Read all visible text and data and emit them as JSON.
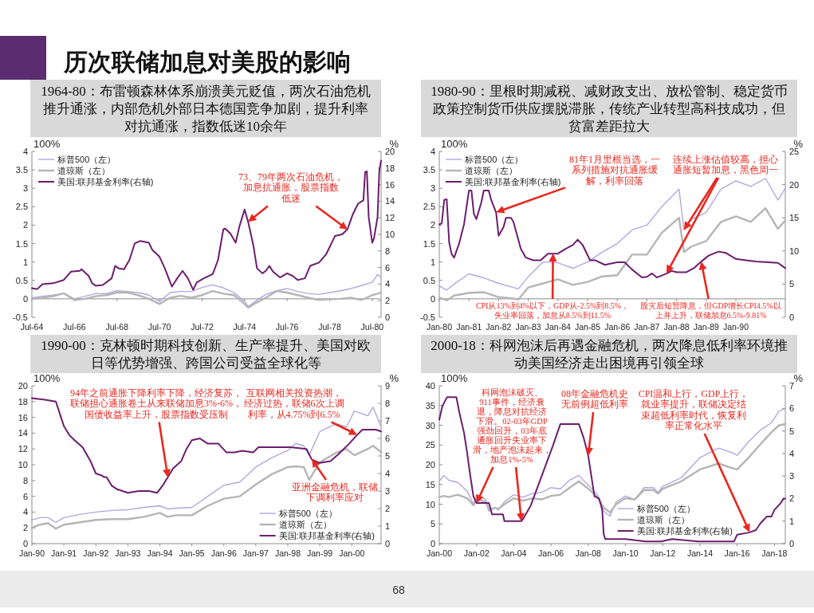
{
  "chart_data": [
    {
      "type": "other",
      "title": "历次联储加息对美股的影响",
      "annotations": [
        "68"
      ]
    },
    {
      "type": "line",
      "title": "1964-80：布雷顿森林体系崩溃美元贬值，两次石油危机推升通涨，内部危机外部日本德国竞争加剧，提升利率对抗通涨，指数低迷10余年",
      "ylabel": "100%",
      "y2label": "%",
      "legend": "top left",
      "line_style": "solid",
      "xlim": [
        "1964-07",
        "1980-12"
      ],
      "xticks": [
        {
          "value": "1964-07",
          "label": "Jul-64"
        },
        {
          "value": "1966-07",
          "label": "Jul-66"
        },
        {
          "value": "1968-07",
          "label": "Jul-68"
        },
        {
          "value": "1970-07",
          "label": "Jul-70"
        },
        {
          "value": "1972-07",
          "label": "Jul-72"
        },
        {
          "value": "1974-07",
          "label": "Jul-74"
        },
        {
          "value": "1976-07",
          "label": "Jul-76"
        },
        {
          "value": "1978-07",
          "label": "Jul-78"
        },
        {
          "value": "1980-07",
          "label": "Jul-80"
        }
      ],
      "ylim": [
        -0.5,
        4
      ],
      "yticks": [
        -0.5,
        0,
        0.5,
        1,
        1.5,
        2,
        2.5,
        3,
        3.5,
        4
      ],
      "y2lim": [
        0,
        20
      ],
      "y2ticks": [
        0,
        2,
        4,
        6,
        8,
        10,
        12,
        14,
        16,
        18,
        20
      ],
      "x": [
        "1964-07",
        "1965-01",
        "1965-07",
        "1966-01",
        "1966-07",
        "1967-01",
        "1967-07",
        "1968-01",
        "1968-07",
        "1969-01",
        "1969-07",
        "1970-01",
        "1970-07",
        "1971-01",
        "1971-07",
        "1972-01",
        "1972-07",
        "1973-01",
        "1973-07",
        "1974-01",
        "1974-07",
        "1974-09",
        "1975-01",
        "1975-07",
        "1976-01",
        "1976-07",
        "1977-01",
        "1977-07",
        "1978-01",
        "1978-07",
        "1979-01",
        "1979-07",
        "1980-01",
        "1980-07",
        "1980-10",
        "1980-12"
      ],
      "series": [
        {
          "name": "标普500（左）",
          "color": "#b4a5e3",
          "values": [
            0.03,
            0.07,
            0.1,
            0.15,
            0.0,
            0.07,
            0.14,
            0.14,
            0.22,
            0.2,
            0.17,
            0.1,
            -0.07,
            0.17,
            0.2,
            0.2,
            0.31,
            0.38,
            0.3,
            0.17,
            -0.07,
            -0.21,
            -0.07,
            0.12,
            0.22,
            0.28,
            0.2,
            0.14,
            0.12,
            0.17,
            0.22,
            0.28,
            0.36,
            0.45,
            0.66,
            0.59
          ]
        },
        {
          "name": "道琼斯（左）",
          "color": "#b5b5b5",
          "values": [
            0.0,
            0.03,
            0.07,
            0.15,
            -0.03,
            0.0,
            0.07,
            0.1,
            0.17,
            0.17,
            0.1,
            0.0,
            -0.14,
            0.03,
            0.08,
            0.03,
            0.1,
            0.21,
            0.14,
            0.1,
            -0.14,
            -0.24,
            -0.12,
            0.03,
            0.21,
            0.17,
            0.1,
            0.03,
            -0.03,
            -0.01,
            0.0,
            0.03,
            -0.03,
            0.1,
            0.14,
            0.17
          ]
        },
        {
          "name": "美国:联邦基金利率(右轴)",
          "color": "#6c1d6e",
          "axis": "y2",
          "x": [
            "1964-07",
            "1964-10",
            "1965-01",
            "1965-07",
            "1966-01",
            "1966-05",
            "1966-10",
            "1966-11",
            "1967-03",
            "1967-05",
            "1967-07",
            "1967-11",
            "1968-04",
            "1968-06",
            "1968-08",
            "1968-11",
            "1969-02",
            "1969-05",
            "1969-08",
            "1970-01",
            "1970-03",
            "1970-07",
            "1970-10",
            "1971-02",
            "1971-05",
            "1971-08",
            "1971-11",
            "1972-02",
            "1972-04",
            "1972-08",
            "1973-01",
            "1973-04",
            "1973-07",
            "1973-08",
            "1973-11",
            "1974-02",
            "1974-04",
            "1974-07",
            "1974-09",
            "1974-12",
            "1975-02",
            "1975-05",
            "1975-07",
            "1975-09",
            "1975-11",
            "1976-03",
            "1976-07",
            "1976-10",
            "1977-01",
            "1977-05",
            "1977-08",
            "1978-01",
            "1978-05",
            "1978-10",
            "1979-02",
            "1979-05",
            "1979-08",
            "1979-11",
            "1980-02",
            "1980-03",
            "1980-04",
            "1980-05",
            "1980-07",
            "1980-08",
            "1980-10",
            "1980-11",
            "1980-12"
          ],
          "values": [
            3.5,
            3.4,
            4.0,
            4.1,
            4.5,
            5.5,
            5.6,
            5.8,
            5.0,
            4.1,
            3.8,
            3.9,
            4.7,
            6.2,
            5.9,
            5.8,
            6.9,
            8.9,
            9.2,
            9.0,
            8.1,
            7.3,
            5.9,
            3.7,
            4.7,
            5.6,
            4.7,
            3.3,
            4.2,
            4.7,
            5.2,
            6.9,
            10.6,
            10.7,
            10.1,
            9.0,
            10.9,
            13.0,
            11.5,
            8.6,
            5.9,
            5.3,
            5.6,
            6.2,
            5.5,
            4.8,
            5.3,
            5.0,
            4.5,
            4.7,
            6.2,
            6.6,
            7.6,
            9.8,
            10.0,
            10.6,
            12.4,
            13.7,
            14.1,
            17.5,
            17.6,
            12.1,
            9.0,
            9.5,
            12.1,
            17.7,
            18.9
          ]
        }
      ],
      "annotations": [
        {
          "text": "73、79年两次石油危机，加息抗通胀，股票指数低迷",
          "x": "1974-09",
          "y": 2.09
        }
      ]
    },
    {
      "type": "line",
      "title": "1980-90：里根时期减税、减财政支出、放松管制、稳定货币政策控制货币供应摆脱滞胀，传统产业转型高科技成功，但贫富差距拉大",
      "ylabel": "100%",
      "y2label": "%",
      "legend": "top left",
      "line_style": "solid",
      "xlim": [
        "1980-01",
        "1991-09"
      ],
      "xticks": [
        {
          "value": "1980-01",
          "label": "Jan-80"
        },
        {
          "value": "1981-01",
          "label": "Jan-81"
        },
        {
          "value": "1982-01",
          "label": "Jan-82"
        },
        {
          "value": "1983-01",
          "label": "Jan-83"
        },
        {
          "value": "1984-01",
          "label": "Jan-84"
        },
        {
          "value": "1985-01",
          "label": "Jan-85"
        },
        {
          "value": "1986-01",
          "label": "Jan-86"
        },
        {
          "value": "1987-01",
          "label": "Jan-87"
        },
        {
          "value": "1988-01",
          "label": "Jan-88"
        },
        {
          "value": "1989-01",
          "label": "Jan-89"
        },
        {
          "value": "1990-01",
          "label": "Jan-90"
        }
      ],
      "ylim": [
        -0.5,
        4
      ],
      "yticks": [
        -0.5,
        0,
        0.5,
        1,
        1.5,
        2,
        2.5,
        3,
        3.5,
        4
      ],
      "y2lim": [
        0,
        25
      ],
      "y2ticks": [
        0,
        5,
        10,
        15,
        20,
        25
      ],
      "x": [
        "1980-01",
        "1980-04",
        "1980-07",
        "1981-01",
        "1981-07",
        "1982-01",
        "1982-07",
        "1982-09",
        "1983-01",
        "1983-07",
        "1984-01",
        "1984-07",
        "1985-01",
        "1985-07",
        "1986-01",
        "1986-07",
        "1987-01",
        "1987-07",
        "1988-02",
        "1988-04",
        "1988-07",
        "1989-01",
        "1989-07",
        "1990-01",
        "1990-07",
        "1991-01",
        "1991-06",
        "1991-09"
      ],
      "series": [
        {
          "name": "标普500（左）",
          "color": "#b4a5e3",
          "values": [
            0.35,
            0.24,
            0.4,
            0.68,
            0.57,
            0.42,
            0.31,
            0.27,
            0.6,
            1.0,
            0.98,
            0.83,
            1.0,
            1.27,
            1.5,
            1.87,
            2.0,
            2.5,
            2.98,
            1.87,
            2.16,
            2.35,
            2.98,
            3.2,
            3.05,
            3.27,
            2.68,
            3.0
          ]
        },
        {
          "name": "道琼斯（左）",
          "color": "#b5b5b5",
          "values": [
            0.03,
            -0.04,
            0.09,
            0.16,
            0.18,
            0.05,
            0.01,
            -0.02,
            0.31,
            0.42,
            0.53,
            0.38,
            0.46,
            0.61,
            0.64,
            1.2,
            1.2,
            1.79,
            2.2,
            1.27,
            1.42,
            1.57,
            2.09,
            2.24,
            2.09,
            2.46,
            1.9,
            2.13
          ]
        },
        {
          "name": "美国:联邦基金利率(右轴)",
          "color": "#6c1d6e",
          "axis": "y2",
          "x": [
            "1980-01",
            "1980-02",
            "1980-03",
            "1980-04",
            "1980-05",
            "1980-06",
            "1980-07",
            "1980-09",
            "1980-11",
            "1981-01",
            "1981-02",
            "1981-03",
            "1981-04",
            "1981-06",
            "1981-07",
            "1981-09",
            "1981-10",
            "1981-12",
            "1982-01",
            "1982-03",
            "1982-04",
            "1982-06",
            "1982-07",
            "1982-10",
            "1982-12",
            "1983-03",
            "1983-06",
            "1983-09",
            "1984-01",
            "1984-04",
            "1984-07",
            "1984-09",
            "1984-11",
            "1985-02",
            "1985-04",
            "1985-08",
            "1986-01",
            "1986-04",
            "1986-07",
            "1986-11",
            "1987-01",
            "1987-03",
            "1987-05",
            "1987-09",
            "1987-11",
            "1988-01",
            "1988-05",
            "1988-08",
            "1988-11",
            "1989-02",
            "1989-06",
            "1989-09",
            "1990-01",
            "1990-05",
            "1990-09",
            "1991-02",
            "1991-06",
            "1991-09"
          ],
          "values": [
            14.0,
            14.2,
            17.7,
            17.8,
            11.3,
            9.5,
            9.0,
            11.1,
            14.0,
            19.1,
            19.1,
            15.6,
            14.8,
            17.3,
            19.1,
            19.1,
            17.7,
            15.8,
            12.3,
            13.6,
            15.0,
            15.0,
            14.4,
            10.3,
            9.0,
            8.6,
            8.6,
            9.6,
            9.6,
            10.3,
            10.9,
            11.7,
            10.9,
            8.6,
            8.6,
            7.9,
            8.3,
            8.3,
            7.2,
            6.0,
            6.1,
            6.6,
            6.0,
            6.6,
            7.0,
            6.8,
            6.8,
            7.4,
            8.4,
            9.3,
            9.9,
            9.7,
            8.8,
            8.6,
            8.4,
            8.3,
            8.2,
            7.4
          ]
        }
      ],
      "annotations": [
        {
          "text": "81年1月里根当选，一系列措施对抗通胀缓解，利率回落",
          "x": "1981-12",
          "y": 2.35
        },
        {
          "text": "连续上涨估值较高，担心通胀短暂加息，黑色周一",
          "x": "1988-04",
          "y": 1.87
        },
        {
          "text": "CPI从13%到4%以下，GDP从-2.5%到8.5%，失业率回落，加息从8.5%到11.5%",
          "x": "1983-11",
          "y": 1.23
        },
        {
          "text": "股灾后短暂降息，但GDP增长CPI4.5%以上并上升，联储加息6.5%-9.81%",
          "x": "1988-11",
          "y": 1.01
        }
      ]
    },
    {
      "type": "line",
      "title": "1990-00：克林顿时期科技创新、生产率提升、美国对欧日等优势增强、跨国公司受益全球化等",
      "ylabel": "100%",
      "y2label": "%",
      "legend": "bottom right",
      "line_style": "solid",
      "xlim": [
        "1990-01",
        "2000-12"
      ],
      "xticks": [
        {
          "value": "1990-01",
          "label": "Jan-90"
        },
        {
          "value": "1991-01",
          "label": "Jan-91"
        },
        {
          "value": "1992-01",
          "label": "Jan-92"
        },
        {
          "value": "1993-01",
          "label": "Jan-93"
        },
        {
          "value": "1994-01",
          "label": "Jan-94"
        },
        {
          "value": "1995-01",
          "label": "Jan-95"
        },
        {
          "value": "1996-01",
          "label": "Jan-96"
        },
        {
          "value": "1997-01",
          "label": "Jan-97"
        },
        {
          "value": "1998-01",
          "label": "Jan-98"
        },
        {
          "value": "1999-01",
          "label": "Jan-99"
        },
        {
          "value": "2000-01",
          "label": "Jan-00"
        }
      ],
      "ylim": [
        0,
        20
      ],
      "yticks": [
        0,
        2,
        4,
        6,
        8,
        10,
        12,
        14,
        16,
        18,
        20
      ],
      "y2lim": [
        0,
        9
      ],
      "y2ticks": [
        0,
        1,
        2,
        3,
        4,
        5,
        6,
        7,
        8,
        9
      ],
      "x": [
        "1990-01",
        "1990-04",
        "1990-07",
        "1990-10",
        "1991-01",
        "1991-07",
        "1992-01",
        "1992-07",
        "1993-01",
        "1993-07",
        "1994-01",
        "1994-04",
        "1994-07",
        "1995-01",
        "1995-07",
        "1996-01",
        "1996-07",
        "1997-01",
        "1997-07",
        "1998-01",
        "1998-04",
        "1998-07",
        "1998-09",
        "1999-01",
        "1999-07",
        "1999-11",
        "2000-02",
        "2000-07",
        "2000-09",
        "2000-12"
      ],
      "series": [
        {
          "name": "标普500（左）",
          "color": "#b4a5e3",
          "values": [
            3.0,
            3.3,
            3.3,
            2.7,
            3.3,
            3.7,
            4.0,
            4.2,
            4.3,
            4.6,
            4.8,
            4.4,
            4.5,
            4.6,
            6.0,
            7.4,
            7.8,
            9.7,
            10.9,
            11.8,
            12.7,
            12.4,
            11.2,
            14.2,
            15.2,
            14.8,
            16.8,
            16.2,
            17.3,
            14.8
          ]
        },
        {
          "name": "道琼斯（左）",
          "color": "#b5b5b5",
          "values": [
            2.0,
            2.4,
            2.6,
            1.9,
            2.4,
            2.7,
            3.0,
            3.1,
            3.1,
            3.4,
            3.9,
            3.4,
            3.6,
            3.6,
            4.8,
            5.7,
            6.0,
            7.5,
            8.8,
            9.7,
            9.8,
            9.7,
            8.1,
            10.3,
            11.5,
            12.0,
            11.2,
            12.0,
            12.4,
            11.6
          ]
        },
        {
          "name": "美国:联邦基金利率(右轴)",
          "color": "#6c1d6e",
          "axis": "y2",
          "x": [
            "1990-01",
            "1990-06",
            "1990-10",
            "1991-01",
            "1991-03",
            "1991-05",
            "1991-08",
            "1991-11",
            "1992-01",
            "1992-03",
            "1992-04",
            "1992-05",
            "1992-07",
            "1992-09",
            "1992-11",
            "1993-01",
            "1993-05",
            "1993-09",
            "1993-12",
            "1994-02",
            "1994-04",
            "1994-06",
            "1994-09",
            "1994-11",
            "1995-01",
            "1995-04",
            "1995-07",
            "1995-11",
            "1996-02",
            "1996-05",
            "1996-08",
            "1996-12",
            "1997-02",
            "1997-08",
            "1998-02",
            "1998-08",
            "1998-10",
            "1999-01",
            "1999-05",
            "1999-08",
            "1999-12",
            "2000-03",
            "2000-05",
            "2000-10",
            "2000-12"
          ],
          "values": [
            8.3,
            8.2,
            8.1,
            6.7,
            6.2,
            5.9,
            5.5,
            4.7,
            4.0,
            3.9,
            3.8,
            3.8,
            3.3,
            3.1,
            3.0,
            2.9,
            3.0,
            3.0,
            2.9,
            3.3,
            3.8,
            4.3,
            4.7,
            5.4,
            5.9,
            6.0,
            5.7,
            5.7,
            5.2,
            5.2,
            5.3,
            5.2,
            5.5,
            5.5,
            5.5,
            5.4,
            4.8,
            4.6,
            4.7,
            5.1,
            5.7,
            6.2,
            6.5,
            6.5,
            6.4
          ]
        }
      ],
      "annotations": [
        {
          "text": "94年之前通胀下降利率下降，经济复苏，联储担心通胀卷土从来联储加息3%-6%，国债收益率上升，股票指数受压制",
          "x": "1994-04",
          "y": 8.4
        },
        {
          "text": "亚洲金融危机，联储下调利率应对",
          "x": "1998-10",
          "y": 10.7
        },
        {
          "text": "互联网相关投资热潮，经济过热，联储6次上调利率，从4.75%到6.5%",
          "x": "2000-03",
          "y": 13.8
        }
      ]
    },
    {
      "type": "line",
      "title": "2000-18：科网泡沫后再遇金融危机，两次降息低利率环境推动美国经济走出困境再引领全球",
      "ylabel": "100%",
      "y2label": "%",
      "legend": "bottom right",
      "line_style": "solid",
      "xlim": [
        "2000-01",
        "2018-08"
      ],
      "xticks": [
        {
          "value": "2000-01",
          "label": "Jan-00"
        },
        {
          "value": "2002-01",
          "label": "Jan-02"
        },
        {
          "value": "2004-01",
          "label": "Jan-04"
        },
        {
          "value": "2006-01",
          "label": "Jan-06"
        },
        {
          "value": "2008-01",
          "label": "Jan-08"
        },
        {
          "value": "2010-01",
          "label": "Jan-10"
        },
        {
          "value": "2012-01",
          "label": "Jan-12"
        },
        {
          "value": "2014-01",
          "label": "Jan-14"
        },
        {
          "value": "2016-01",
          "label": "Jan-16"
        },
        {
          "value": "2018-01",
          "label": "Jan-18"
        }
      ],
      "ylim": [
        0,
        40
      ],
      "yticks": [
        0,
        5,
        10,
        15,
        20,
        25,
        30,
        35,
        40
      ],
      "y2lim": [
        0,
        7
      ],
      "y2ticks": [
        0,
        1,
        2,
        3,
        4,
        5,
        6,
        7
      ],
      "x": [
        "2000-01",
        "2000-04",
        "2000-07",
        "2001-01",
        "2001-07",
        "2001-11",
        "2002-01",
        "2002-07",
        "2002-09",
        "2003-01",
        "2003-03",
        "2003-07",
        "2004-01",
        "2004-07",
        "2005-01",
        "2005-07",
        "2006-01",
        "2006-07",
        "2007-01",
        "2007-07",
        "2008-01",
        "2008-07",
        "2008-11",
        "2009-03",
        "2009-07",
        "2010-01",
        "2010-07",
        "2011-01",
        "2011-07",
        "2011-10",
        "2012-01",
        "2013-01",
        "2014-01",
        "2015-01",
        "2015-10",
        "2016-01",
        "2016-09",
        "2017-04",
        "2017-11",
        "2018-04",
        "2018-08"
      ],
      "series": [
        {
          "name": "标普500（左）",
          "color": "#b4a5e3",
          "values": [
            15.8,
            17.3,
            16.1,
            15.5,
            13.3,
            10.0,
            12.4,
            11.2,
            8.2,
            9.1,
            8.5,
            10.6,
            12.4,
            11.8,
            12.7,
            13.0,
            14.2,
            13.9,
            16.1,
            17.3,
            14.8,
            12.4,
            8.2,
            7.0,
            10.6,
            12.1,
            11.2,
            14.2,
            14.2,
            13.0,
            14.5,
            16.7,
            21.8,
            24.2,
            23.0,
            22.4,
            26.1,
            28.8,
            30.6,
            33.6,
            34.2
          ]
        },
        {
          "name": "道琼斯（左）",
          "color": "#b5b5b5",
          "values": [
            11.8,
            12.1,
            11.8,
            12.4,
            11.5,
            9.7,
            11.2,
            10.6,
            8.5,
            9.1,
            8.8,
            10.0,
            11.5,
            10.9,
            11.5,
            11.2,
            12.1,
            12.4,
            14.2,
            15.8,
            13.9,
            11.8,
            9.1,
            7.9,
            10.0,
            11.5,
            11.2,
            13.6,
            13.6,
            12.7,
            13.9,
            15.8,
            18.8,
            20.3,
            19.1,
            18.8,
            22.1,
            25.2,
            28.2,
            30.0,
            30.3
          ]
        },
        {
          "name": "美国:联邦基金利率(右轴)",
          "color": "#6c1d6e",
          "axis": "y2",
          "x": [
            "2000-01",
            "2000-03",
            "2000-06",
            "2000-12",
            "2001-02",
            "2001-05",
            "2001-07",
            "2001-09",
            "2001-11",
            "2002-01",
            "2002-08",
            "2002-09",
            "2002-11",
            "2003-06",
            "2003-07",
            "2004-06",
            "2004-07",
            "2004-12",
            "2005-07",
            "2006-02",
            "2006-07",
            "2007-07",
            "2007-10",
            "2008-01",
            "2008-03",
            "2008-05",
            "2008-08",
            "2008-10",
            "2008-11",
            "2008-12",
            "2010-01",
            "2011-02",
            "2011-12",
            "2012-07",
            "2013-12",
            "2014-08",
            "2015-11",
            "2016-01",
            "2016-09",
            "2017-01",
            "2017-04",
            "2017-08",
            "2017-11",
            "2018-01",
            "2018-05",
            "2018-07",
            "2018-08"
          ],
          "values": [
            5.5,
            6.1,
            6.5,
            6.5,
            5.8,
            4.9,
            4.0,
            3.0,
            2.1,
            1.8,
            1.8,
            1.8,
            1.3,
            1.3,
            1.0,
            1.0,
            1.1,
            1.7,
            3.0,
            4.3,
            5.3,
            5.3,
            4.7,
            3.9,
            3.0,
            2.1,
            2.0,
            1.5,
            0.4,
            0.2,
            0.2,
            0.1,
            0.1,
            0.2,
            0.1,
            0.1,
            0.1,
            0.4,
            0.5,
            0.6,
            0.9,
            1.2,
            1.2,
            1.5,
            1.8,
            2.0,
            2.0
          ]
        }
      ],
      "annotations": [
        {
          "text": "科网泡沫破灭、911事件，经济衰退，降息对抗经济下滑。02-03年GDP强劲回升，03年底通胀回升失业率下滑，地产泡沫起来，加息1%-5%",
          "x": "2002-01",
          "y": 10.3
        },
        {
          "text": "08年金融危机史无前例超低利率",
          "x": "2008-01",
          "y": 22.3
        },
        {
          "text": "CPI温和上行，GDP上行，就业率提升，联储决定结束超低利率时代，恢复利率正常化水平",
          "x": "2016-09",
          "y": 2.9
        }
      ]
    }
  ]
}
